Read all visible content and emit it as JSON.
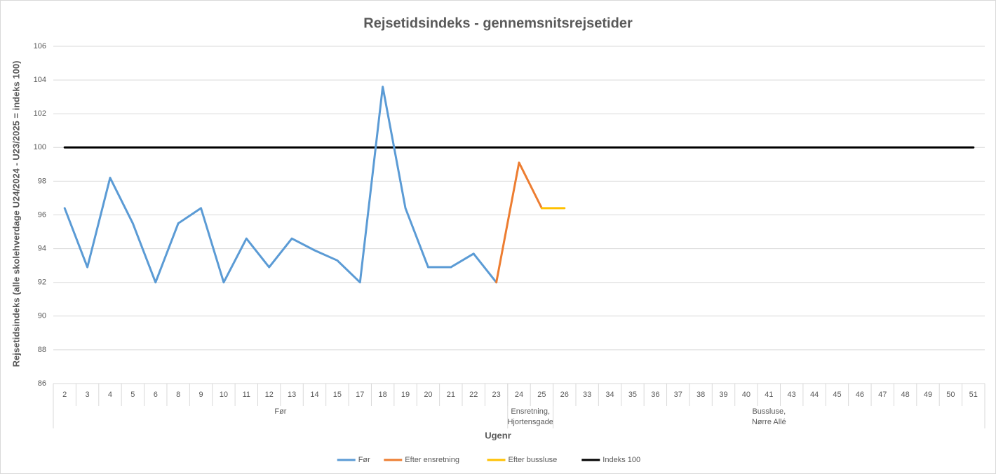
{
  "chart_data": {
    "type": "line",
    "title": "Rejsetidsindeks - gennemsnitsrejsetider",
    "x_label": "Ugenr",
    "y_label": "Rejsetidsindeks (alle skolehverdage U24/2024 - U23/2025 = indeks 100)",
    "categories": [
      "2",
      "3",
      "4",
      "5",
      "6",
      "8",
      "9",
      "10",
      "11",
      "12",
      "13",
      "14",
      "15",
      "17",
      "18",
      "19",
      "20",
      "21",
      "22",
      "23",
      "24",
      "25",
      "26",
      "33",
      "34",
      "35",
      "36",
      "37",
      "38",
      "39",
      "40",
      "41",
      "43",
      "44",
      "45",
      "46",
      "47",
      "48",
      "49",
      "50",
      "51"
    ],
    "groups": [
      {
        "lines": [
          "Før"
        ],
        "start": 0,
        "end": 19
      },
      {
        "lines": [
          "Ensretning,",
          "Hjortensgade"
        ],
        "start": 20,
        "end": 21
      },
      {
        "lines": [
          "Bussluse,",
          "Nørre Allé"
        ],
        "start": 22,
        "end": 40
      }
    ],
    "series": [
      {
        "name": "Før",
        "color": "#5b9bd5",
        "values": [
          96.4,
          92.9,
          98.2,
          95.5,
          92.0,
          95.5,
          96.4,
          92.0,
          94.6,
          92.9,
          94.6,
          93.9,
          93.3,
          92.0,
          103.6,
          96.4,
          92.9,
          92.9,
          93.7,
          92.0,
          null,
          null,
          null,
          null,
          null,
          null,
          null,
          null,
          null,
          null,
          null,
          null,
          null,
          null,
          null,
          null,
          null,
          null,
          null,
          null,
          null
        ]
      },
      {
        "name": "Efter ensretning",
        "color": "#ed7d31",
        "values": [
          null,
          null,
          null,
          null,
          null,
          null,
          null,
          null,
          null,
          null,
          null,
          null,
          null,
          null,
          null,
          null,
          null,
          null,
          null,
          92.0,
          99.1,
          96.4,
          null,
          null,
          null,
          null,
          null,
          null,
          null,
          null,
          null,
          null,
          null,
          null,
          null,
          null,
          null,
          null,
          null,
          null,
          null
        ]
      },
      {
        "name": "Efter bussluse",
        "color": "#ffc000",
        "values": [
          null,
          null,
          null,
          null,
          null,
          null,
          null,
          null,
          null,
          null,
          null,
          null,
          null,
          null,
          null,
          null,
          null,
          null,
          null,
          null,
          null,
          96.4,
          96.4,
          null,
          null,
          null,
          null,
          null,
          null,
          null,
          null,
          null,
          null,
          null,
          null,
          null,
          null,
          null,
          null,
          null,
          null
        ]
      },
      {
        "name": "Indeks 100",
        "color": "#000000",
        "values": [
          100,
          100,
          100,
          100,
          100,
          100,
          100,
          100,
          100,
          100,
          100,
          100,
          100,
          100,
          100,
          100,
          100,
          100,
          100,
          100,
          100,
          100,
          100,
          100,
          100,
          100,
          100,
          100,
          100,
          100,
          100,
          100,
          100,
          100,
          100,
          100,
          100,
          100,
          100,
          100,
          100
        ]
      }
    ],
    "ylim": [
      86,
      106
    ],
    "yticks": [
      86,
      88,
      90,
      92,
      94,
      96,
      98,
      100,
      102,
      104,
      106
    ],
    "grid": true,
    "legend": "bottom"
  }
}
